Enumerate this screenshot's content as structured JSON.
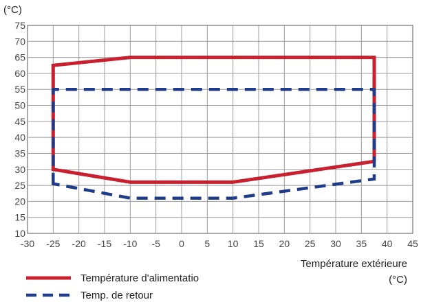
{
  "chart_data": {
    "type": "line",
    "title": "",
    "ylabel": "(°C)",
    "xlabel": "Température extérieure",
    "xlabel_unit": "(°C)",
    "xlim": [
      -30,
      45
    ],
    "ylim": [
      10,
      75
    ],
    "x_ticks": [
      -30,
      -25,
      -20,
      -15,
      -10,
      -5,
      0,
      5,
      10,
      15,
      20,
      25,
      30,
      35,
      40,
      45
    ],
    "y_ticks": [
      10,
      15,
      20,
      25,
      30,
      35,
      40,
      45,
      50,
      55,
      60,
      65,
      70,
      75
    ],
    "grid": true,
    "legend_position": "bottom-left",
    "series": [
      {
        "name": "Température d'alimentatio",
        "color": "#c8202f",
        "style": "solid",
        "points": [
          [
            -25,
            30
          ],
          [
            -25,
            62.5
          ],
          [
            -10,
            65
          ],
          [
            37.5,
            65
          ],
          [
            37.5,
            32.5
          ],
          [
            10,
            26
          ],
          [
            -10,
            26
          ],
          [
            -25,
            30
          ]
        ]
      },
      {
        "name": "Temp. de retour",
        "color": "#1f3c88",
        "style": "dashed",
        "points": [
          [
            -25,
            25.5
          ],
          [
            -25,
            55
          ],
          [
            37.5,
            55
          ],
          [
            37.5,
            27
          ],
          [
            10,
            21
          ],
          [
            -10,
            21
          ],
          [
            -25,
            25.5
          ]
        ]
      }
    ]
  }
}
